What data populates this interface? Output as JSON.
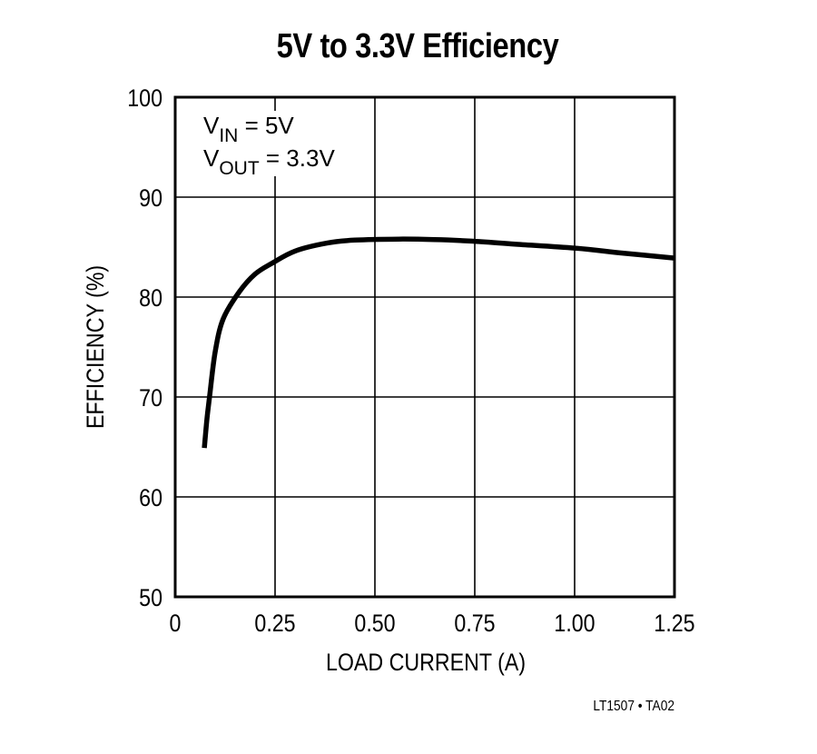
{
  "chart_data": {
    "type": "line",
    "title": "5V to 3.3V Efficiency",
    "xlabel": "LOAD CURRENT (A)",
    "ylabel": "EFFICIENCY (%)",
    "xlim": [
      0,
      1.25
    ],
    "ylim": [
      50,
      100
    ],
    "x_ticks": [
      "0",
      "0.25",
      "0.50",
      "0.75",
      "1.00",
      "1.25"
    ],
    "y_ticks": [
      "50",
      "60",
      "70",
      "80",
      "90",
      "100"
    ],
    "grid": true,
    "legend": null,
    "annotations": [
      {
        "main": "V",
        "sub": "IN",
        "rest": " = 5V"
      },
      {
        "main": "V",
        "sub": "OUT",
        "rest": " = 3.3V"
      }
    ],
    "series": [
      {
        "name": "Efficiency",
        "x": [
          0.073,
          0.08,
          0.086,
          0.1,
          0.12,
          0.16,
          0.2,
          0.243,
          0.3,
          0.38,
          0.45,
          0.56,
          0.65,
          0.74,
          0.85,
          1.0,
          1.12,
          1.25
        ],
        "y": [
          64.9,
          68.0,
          70.0,
          74.5,
          77.8,
          80.5,
          82.3,
          83.4,
          84.6,
          85.4,
          85.7,
          85.8,
          85.75,
          85.6,
          85.3,
          84.9,
          84.4,
          83.9
        ]
      }
    ],
    "footer": "LT1507 • TA02"
  },
  "colors": {
    "line": "#000000",
    "grid": "#000000",
    "background": "#ffffff"
  }
}
